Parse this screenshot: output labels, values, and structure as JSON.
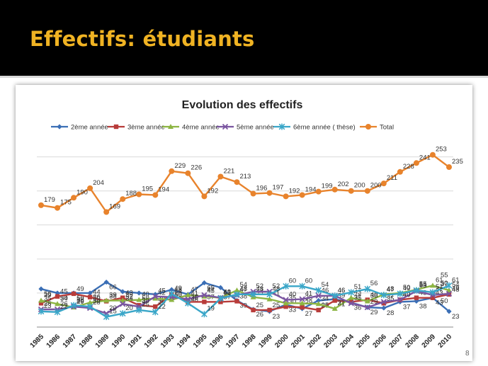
{
  "slide": {
    "title": "Effectifs: étudiants",
    "page_number": "8",
    "title_color": "#f0b323"
  },
  "chart_data": {
    "type": "line",
    "title": "Evolution des effectifs",
    "xlabel": "",
    "ylabel": "",
    "ylim": [
      0,
      260
    ],
    "grid": true,
    "legend": "top",
    "categories": [
      "1985",
      "1986",
      "1987",
      "1988",
      "1989",
      "1990",
      "1991",
      "1992",
      "1993",
      "1994",
      "1995",
      "1996",
      "1997",
      "1998",
      "1999",
      "2000",
      "2001",
      "2002",
      "2003",
      "2004",
      "2005",
      "2006",
      "2007",
      "2008",
      "2009",
      "2010"
    ],
    "series": [
      {
        "name": "2ème année",
        "color": "#3b6fb6",
        "marker": "diamond",
        "values": [
          56,
          50,
          50,
          50,
          66,
          52,
          50,
          48,
          55,
          48,
          65,
          58,
          39,
          26,
          23,
          33,
          27,
          39,
          41,
          36,
          29,
          28,
          37,
          38,
          43,
          23
        ],
        "labels": [
          "56",
          "50",
          "50",
          "50",
          "66",
          "52",
          "50",
          "48",
          "55",
          "48",
          "65",
          "58",
          "39",
          "26",
          "23",
          "33",
          "27",
          "39",
          "41",
          "36",
          "29",
          "28",
          "37",
          "38",
          "43",
          "23"
        ],
        "last_label": "50"
      },
      {
        "name": "3ème année",
        "color": "#b83c3a",
        "marker": "square",
        "values": [
          35,
          45,
          49,
          44,
          38,
          43,
          32,
          30,
          48,
          37,
          37,
          37,
          38,
          25,
          25,
          30,
          29,
          25,
          39,
          37,
          40,
          35,
          40,
          43,
          43,
          48
        ],
        "labels": [
          "35",
          "45",
          "49",
          "44",
          "38",
          "43",
          "32",
          "30",
          "48",
          "37",
          "37",
          "37",
          "38",
          "25",
          "25",
          "30",
          "29",
          "25",
          "39",
          "37",
          "40",
          "35",
          "40",
          "43",
          "43",
          "48"
        ],
        "last_label": "37"
      },
      {
        "name": "4ème année",
        "color": "#8db543",
        "marker": "triangle",
        "values": [
          39,
          34,
          29,
          36,
          39,
          39,
          40,
          42,
          40,
          47,
          45,
          43,
          54,
          44,
          41,
          35,
          35,
          34,
          27,
          43,
          38,
          48,
          50,
          55,
          61,
          54
        ],
        "labels": [
          "39",
          "34",
          "29",
          "36",
          "39",
          "39",
          "40",
          "42",
          "40",
          "47",
          "45",
          "43",
          "54",
          "44",
          "41",
          "35",
          "35",
          "34",
          "27",
          "43",
          "38",
          "48",
          "50",
          "55",
          "61",
          "54"
        ]
      },
      {
        "name": "5ème année",
        "color": "#7a55a0",
        "marker": "x",
        "values": [
          26,
          26,
          30,
          28,
          20,
          34,
          30,
          45,
          44,
          41,
          47,
          43,
          47,
          52,
          52,
          40,
          41,
          46,
          46,
          35,
          29,
          37,
          40,
          53,
          47,
          49
        ],
        "labels": [
          "26",
          "26",
          "30",
          "28",
          "20",
          "34",
          "30",
          "45",
          "44",
          "41",
          "47",
          "43",
          "47",
          "52",
          "52",
          "40",
          "41",
          "46",
          "46",
          "35",
          "29",
          "37",
          "40",
          "53",
          "47",
          "49"
        ],
        "last_label": "50"
      },
      {
        "name": "6ème année ( thèse)",
        "color": "#3aa6c8",
        "marker": "star",
        "values": [
          23,
          22,
          32,
          30,
          15,
          20,
          25,
          22,
          49,
          35,
          19,
          42,
          48,
          48,
          48,
          60,
          60,
          54,
          46,
          51,
          56,
          47,
          49,
          54,
          51,
          61
        ],
        "labels": [
          "23",
          "22",
          "32",
          "30",
          "15",
          "20",
          "25",
          "22",
          "49",
          "35",
          "19",
          "42",
          "48",
          "48",
          "48",
          "60",
          "60",
          "54",
          "46",
          "51",
          "56",
          "47",
          "49",
          "54",
          "51",
          "61"
        ],
        "last_label": "55"
      },
      {
        "name": "Total",
        "color": "#e8832c",
        "marker": "circle",
        "values": [
          179,
          175,
          190,
          204,
          169,
          188,
          195,
          194,
          229,
          226,
          192,
          221,
          213,
          196,
          197,
          192,
          194,
          199,
          202,
          200,
          200,
          211,
          228,
          241,
          253,
          235
        ],
        "labels": [
          "179",
          "175",
          "190",
          "204",
          "169",
          "188",
          "195",
          "194",
          "229",
          "226",
          "192",
          "221",
          "213",
          "196",
          "197",
          "192",
          "194",
          "199",
          "202",
          "200",
          "200",
          "211",
          "228",
          "241",
          "253",
          "235"
        ]
      }
    ]
  }
}
